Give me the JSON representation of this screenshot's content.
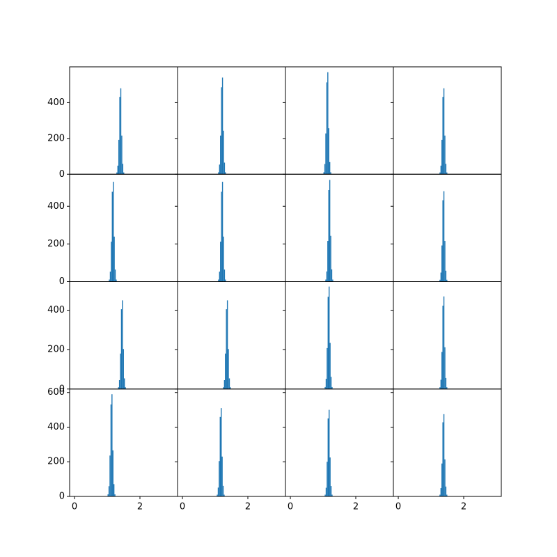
{
  "chart_data": [
    {
      "type": "histogram",
      "bins": [
        1.28,
        1.31,
        1.34,
        1.37,
        1.4,
        1.43,
        1.46,
        1.49,
        1.52
      ],
      "counts": [
        10,
        48,
        192,
        432,
        480,
        216,
        58,
        10
      ],
      "color": "#1f77b4",
      "xlim": [
        -0.15,
        3.15
      ],
      "ylim": [
        0,
        600
      ],
      "yticks": [
        0,
        200,
        400
      ]
    },
    {
      "type": "histogram",
      "bins": [
        1.09,
        1.12,
        1.15,
        1.18,
        1.21,
        1.24,
        1.27,
        1.3,
        1.33
      ],
      "counts": [
        11,
        54,
        216,
        486,
        540,
        243,
        65,
        11
      ],
      "color": "#1f77b4",
      "xlim": [
        -0.15,
        3.15
      ],
      "ylim": [
        0,
        600
      ],
      "yticks": [
        0,
        200,
        400
      ]
    },
    {
      "type": "histogram",
      "bins": [
        1.01,
        1.04,
        1.07,
        1.1,
        1.13,
        1.16,
        1.19,
        1.22,
        1.25
      ],
      "counts": [
        11,
        57,
        228,
        513,
        570,
        257,
        68,
        11
      ],
      "color": "#1f77b4",
      "xlim": [
        -0.15,
        3.15
      ],
      "ylim": [
        0,
        600
      ],
      "yticks": [
        0,
        200,
        400
      ]
    },
    {
      "type": "histogram",
      "bins": [
        1.26,
        1.29,
        1.32,
        1.35,
        1.38,
        1.41,
        1.44,
        1.47,
        1.5
      ],
      "counts": [
        10,
        48,
        192,
        432,
        480,
        216,
        58,
        10
      ],
      "color": "#1f77b4",
      "xlim": [
        -0.15,
        3.15
      ],
      "ylim": [
        0,
        600
      ],
      "yticks": [
        0,
        200,
        400
      ]
    },
    {
      "type": "histogram",
      "bins": [
        1.05,
        1.08,
        1.11,
        1.14,
        1.17,
        1.2,
        1.23,
        1.26,
        1.29
      ],
      "counts": [
        11,
        53,
        212,
        477,
        530,
        239,
        64,
        11
      ],
      "color": "#1f77b4",
      "xlim": [
        -0.15,
        3.15
      ],
      "ylim": [
        0,
        570
      ],
      "yticks": [
        0,
        200,
        400
      ]
    },
    {
      "type": "histogram",
      "bins": [
        1.09,
        1.12,
        1.15,
        1.18,
        1.21,
        1.24,
        1.27,
        1.3,
        1.33
      ],
      "counts": [
        11,
        53,
        212,
        477,
        530,
        239,
        64,
        11
      ],
      "color": "#1f77b4",
      "xlim": [
        -0.15,
        3.15
      ],
      "ylim": [
        0,
        570
      ],
      "yticks": [
        0,
        200,
        400
      ]
    },
    {
      "type": "histogram",
      "bins": [
        1.07,
        1.1,
        1.13,
        1.16,
        1.19,
        1.22,
        1.25,
        1.28,
        1.31
      ],
      "counts": [
        11,
        54,
        216,
        486,
        540,
        243,
        65,
        11
      ],
      "color": "#1f77b4",
      "xlim": [
        -0.15,
        3.15
      ],
      "ylim": [
        0,
        570
      ],
      "yticks": [
        0,
        200,
        400
      ]
    },
    {
      "type": "histogram",
      "bins": [
        1.26,
        1.29,
        1.32,
        1.35,
        1.38,
        1.41,
        1.44,
        1.47,
        1.5
      ],
      "counts": [
        10,
        48,
        192,
        432,
        480,
        216,
        58,
        10
      ],
      "color": "#1f77b4",
      "xlim": [
        -0.15,
        3.15
      ],
      "ylim": [
        0,
        570
      ],
      "yticks": [
        0,
        200,
        400
      ]
    },
    {
      "type": "histogram",
      "bins": [
        1.33,
        1.36,
        1.39,
        1.42,
        1.45,
        1.48,
        1.51,
        1.54,
        1.57
      ],
      "counts": [
        9,
        45,
        180,
        405,
        450,
        203,
        54,
        9
      ],
      "color": "#1f77b4",
      "xlim": [
        -0.15,
        3.15
      ],
      "ylim": [
        0,
        545
      ],
      "yticks": [
        0,
        200,
        400
      ]
    },
    {
      "type": "histogram",
      "bins": [
        1.24,
        1.27,
        1.3,
        1.33,
        1.36,
        1.39,
        1.42,
        1.45,
        1.48
      ],
      "counts": [
        9,
        45,
        180,
        405,
        450,
        203,
        54,
        9
      ],
      "color": "#1f77b4",
      "xlim": [
        -0.15,
        3.15
      ],
      "ylim": [
        0,
        545
      ],
      "yticks": [
        0,
        200,
        400
      ]
    },
    {
      "type": "histogram",
      "bins": [
        1.05,
        1.08,
        1.11,
        1.14,
        1.17,
        1.2,
        1.23,
        1.26,
        1.29
      ],
      "counts": [
        10,
        52,
        208,
        468,
        520,
        234,
        62,
        10
      ],
      "color": "#1f77b4",
      "xlim": [
        -0.15,
        3.15
      ],
      "ylim": [
        0,
        545
      ],
      "yticks": [
        0,
        200,
        400
      ]
    },
    {
      "type": "histogram",
      "bins": [
        1.26,
        1.29,
        1.32,
        1.35,
        1.38,
        1.41,
        1.44,
        1.47,
        1.5
      ],
      "counts": [
        9,
        47,
        188,
        423,
        470,
        212,
        56,
        9
      ],
      "color": "#1f77b4",
      "xlim": [
        -0.15,
        3.15
      ],
      "ylim": [
        0,
        545
      ],
      "yticks": [
        0,
        200,
        400
      ]
    },
    {
      "type": "histogram",
      "bins": [
        1.01,
        1.04,
        1.07,
        1.1,
        1.13,
        1.16,
        1.19,
        1.22,
        1.25
      ],
      "counts": [
        12,
        59,
        236,
        531,
        590,
        266,
        71,
        12
      ],
      "color": "#1f77b4",
      "xlim": [
        -0.15,
        3.15
      ],
      "ylim": [
        0,
        620
      ],
      "yticks": [
        0,
        200,
        400,
        600
      ],
      "xticks": [
        0,
        2
      ]
    },
    {
      "type": "histogram",
      "bins": [
        1.05,
        1.08,
        1.11,
        1.14,
        1.17,
        1.2,
        1.23,
        1.26,
        1.29
      ],
      "counts": [
        10,
        51,
        204,
        459,
        510,
        230,
        61,
        10
      ],
      "color": "#1f77b4",
      "xlim": [
        -0.15,
        3.15
      ],
      "ylim": [
        0,
        620
      ],
      "yticks": [
        0,
        200,
        400,
        600
      ],
      "xticks": [
        0,
        2
      ]
    },
    {
      "type": "histogram",
      "bins": [
        1.05,
        1.08,
        1.11,
        1.14,
        1.17,
        1.2,
        1.23,
        1.26,
        1.29
      ],
      "counts": [
        10,
        50,
        200,
        450,
        500,
        225,
        60,
        10
      ],
      "color": "#1f77b4",
      "xlim": [
        -0.15,
        3.15
      ],
      "ylim": [
        0,
        620
      ],
      "yticks": [
        0,
        200,
        400,
        600
      ],
      "xticks": [
        0,
        2
      ]
    },
    {
      "type": "histogram",
      "bins": [
        1.26,
        1.29,
        1.32,
        1.35,
        1.38,
        1.41,
        1.44,
        1.47,
        1.5
      ],
      "counts": [
        10,
        48,
        190,
        428,
        475,
        214,
        57,
        10
      ],
      "color": "#1f77b4",
      "xlim": [
        -0.15,
        3.15
      ],
      "ylim": [
        0,
        620
      ],
      "yticks": [
        0,
        200,
        400,
        600
      ],
      "xticks": [
        0,
        2
      ]
    }
  ]
}
